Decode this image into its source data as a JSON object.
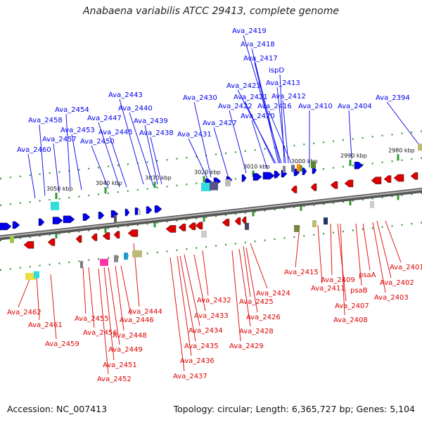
{
  "title": "Anabaena variabilis ATCC 29413, complete genome",
  "footer": {
    "accession": "Accession: NC_007413",
    "summary": "Topology: circular; Length: 6,365,727 bp; Genes: 5,104"
  },
  "colors": {
    "forward": "#0000ee",
    "reverse": "#dd0000",
    "backbone": "#8a8a8a",
    "tick": "#2e9a2e"
  },
  "ticks": [
    "3050 kbp",
    "3040 kbp",
    "3030 kbp",
    "3020 kbp",
    "3010 kbp",
    "3000 kbp",
    "2990 kbp",
    "2980 kbp"
  ],
  "forward_labels": [
    "Ava_2419",
    "Ava_2418",
    "Ava_2417",
    "ispD",
    "Ava_2413",
    "Ava_2423",
    "Ava_2421",
    "Ava_2412",
    "Ava_2443",
    "Ava_2430",
    "Ava_2422",
    "Ava_2416",
    "Ava_2410",
    "Ava_2404",
    "Ava_2394",
    "Ava_2454",
    "Ava_2440",
    "Ava_2420",
    "Ava_2458",
    "Ava_2447",
    "Ava_2439",
    "Ava_2427",
    "Ava_2453",
    "Ava_2445",
    "Ava_2438",
    "Ava_2431",
    "Ava_2457",
    "Ava_2450",
    "Ava_2460"
  ],
  "reverse_labels": [
    "Ava_2415",
    "Ava_2401",
    "psaA",
    "Ava_2409",
    "Ava_2402",
    "Ava_2411",
    "psaB",
    "Ava_2403",
    "Ava_2407",
    "Ava_2432",
    "Ava_2424",
    "Ava_2425",
    "Ava_2444",
    "Ava_2462",
    "Ava_2455",
    "Ava_2446",
    "Ava_2433",
    "Ava_2426",
    "Ava_2408",
    "Ava_2461",
    "Ava_2456",
    "Ava_2448",
    "Ava_2434",
    "Ava_2428",
    "Ava_2459",
    "Ava_2449",
    "Ava_2435",
    "Ava_2429",
    "Ava_2451",
    "Ava_2436",
    "Ava_2452",
    "Ava_2437"
  ]
}
